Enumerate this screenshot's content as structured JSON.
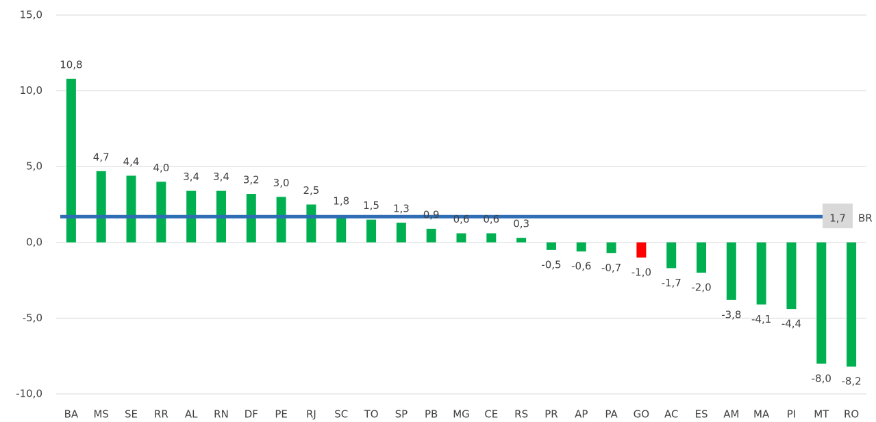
{
  "chart_data": {
    "type": "bar",
    "categories": [
      "BA",
      "MS",
      "SE",
      "RR",
      "AL",
      "RN",
      "DF",
      "PE",
      "RJ",
      "SC",
      "TO",
      "SP",
      "PB",
      "MG",
      "CE",
      "RS",
      "PR",
      "AP",
      "PA",
      "GO",
      "AC",
      "ES",
      "AM",
      "MA",
      "PI",
      "MT",
      "RO"
    ],
    "values": [
      10.8,
      4.7,
      4.4,
      4.0,
      3.4,
      3.4,
      3.2,
      3.0,
      2.5,
      1.8,
      1.5,
      1.3,
      0.9,
      0.6,
      0.6,
      0.3,
      -0.5,
      -0.6,
      -0.7,
      -1.0,
      -1.7,
      -2.0,
      -3.8,
      -4.1,
      -4.4,
      -8.0,
      -8.2
    ],
    "value_labels": [
      "10,8",
      "4,7",
      "4,4",
      "4,0",
      "3,4",
      "3,4",
      "3,2",
      "3,0",
      "2,5",
      "1,8",
      "1,5",
      "1,3",
      "0,9",
      "0,6",
      "0,6",
      "0,3",
      "-0,5",
      "-0,6",
      "-0,7",
      "-1,0",
      "-1,7",
      "-2,0",
      "-3,8",
      "-4,1",
      "-4,4",
      "-8,0",
      "-8,2"
    ],
    "colors": [
      "#00b050",
      "#00b050",
      "#00b050",
      "#00b050",
      "#00b050",
      "#00b050",
      "#00b050",
      "#00b050",
      "#00b050",
      "#00b050",
      "#00b050",
      "#00b050",
      "#00b050",
      "#00b050",
      "#00b050",
      "#00b050",
      "#00b050",
      "#00b050",
      "#00b050",
      "#ff0000",
      "#00b050",
      "#00b050",
      "#00b050",
      "#00b050",
      "#00b050",
      "#00b050",
      "#00b050"
    ],
    "reference_line": {
      "name": "BR",
      "value": 1.7,
      "value_label": "1,7",
      "color": "#2f6db5"
    },
    "ylim": [
      -10,
      15
    ],
    "yticks": [
      {
        "value": -10,
        "label": "-10,0"
      },
      {
        "value": -5,
        "label": "-5,0"
      },
      {
        "value": 0,
        "label": "0,0"
      },
      {
        "value": 5,
        "label": "5,0"
      },
      {
        "value": 10,
        "label": "10,0"
      },
      {
        "value": 15,
        "label": "15,0"
      }
    ],
    "grid": true
  }
}
